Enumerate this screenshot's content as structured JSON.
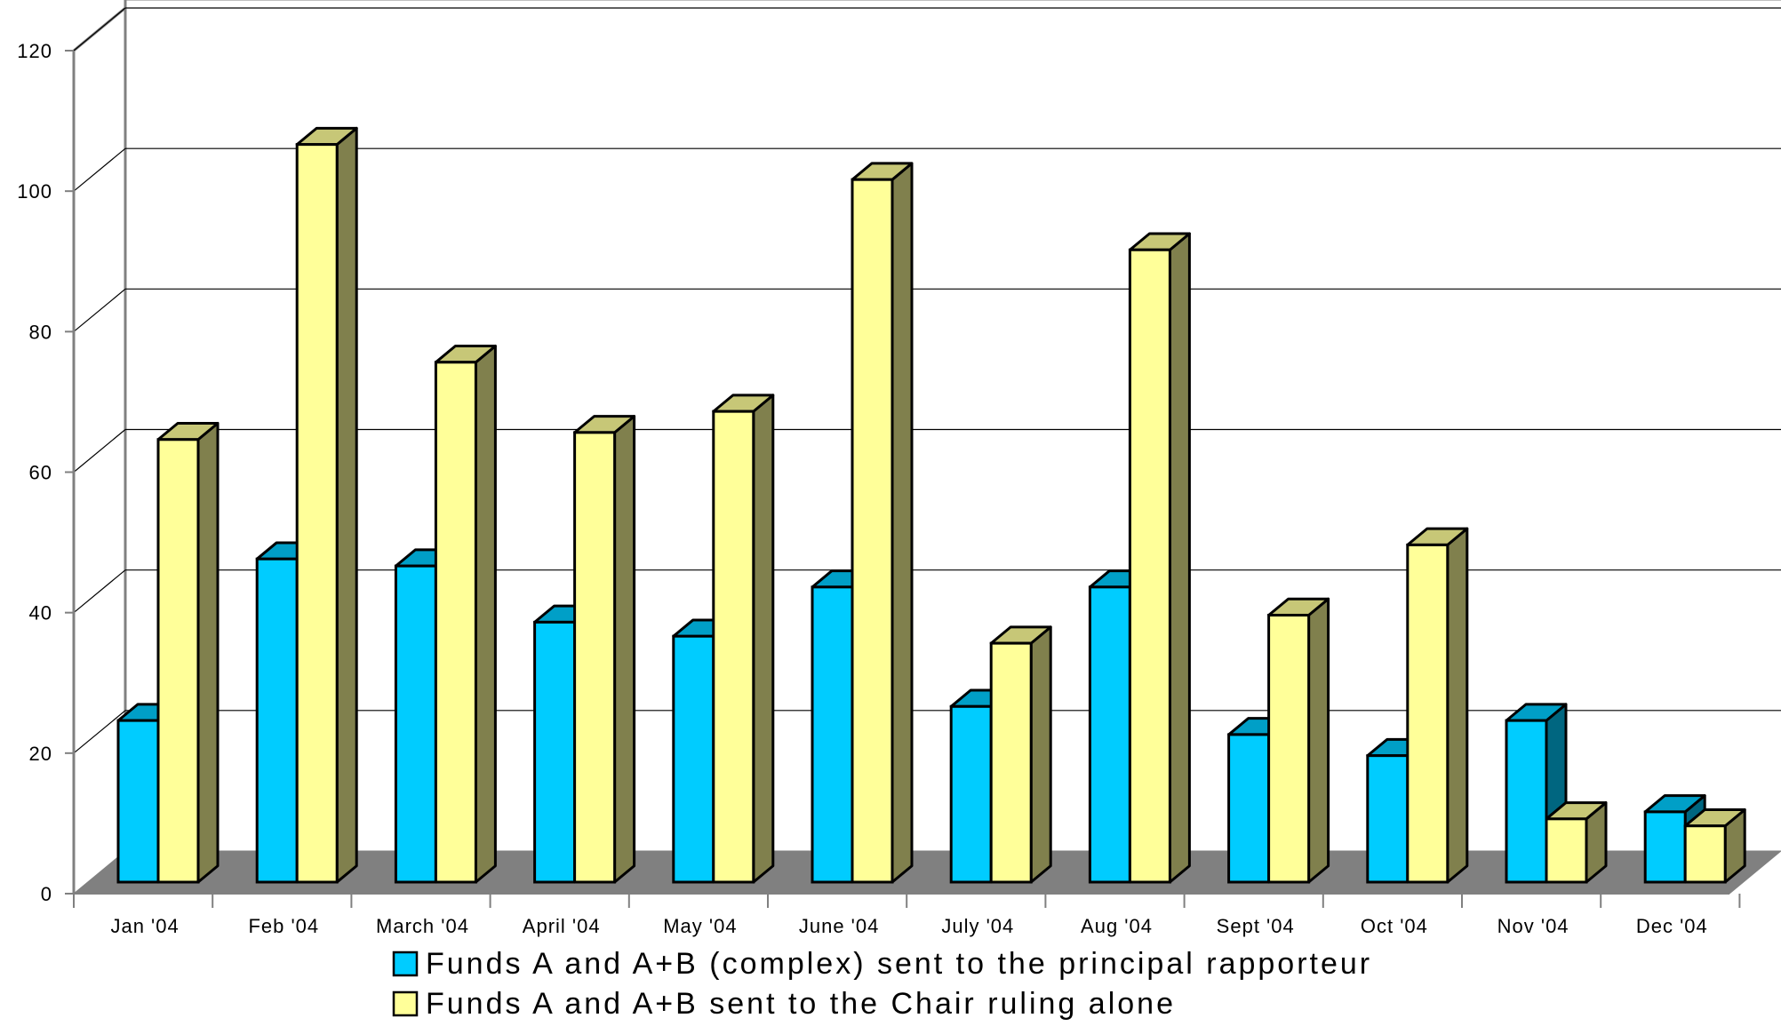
{
  "chart_data": {
    "type": "bar",
    "title": "",
    "xlabel": "",
    "ylabel": "",
    "ylim": [
      0,
      120
    ],
    "yticks": [
      0,
      20,
      40,
      60,
      80,
      100,
      120
    ],
    "grid": true,
    "legend_position": "bottom",
    "categories": [
      "Jan '04",
      "Feb '04",
      "March '04",
      "April '04",
      "May '04",
      "June '04",
      "July '04",
      "Aug '04",
      "Sept '04",
      "Oct '04",
      "Nov '04",
      "Dec '04"
    ],
    "series": [
      {
        "name": "Funds A and A+B (complex) sent to the principal rapporteur",
        "color": "#00ccff",
        "values": [
          23,
          46,
          45,
          37,
          35,
          42,
          25,
          42,
          21,
          18,
          23,
          10
        ]
      },
      {
        "name": "Funds A and A+B sent to the Chair ruling alone",
        "color": "#ffff99",
        "values": [
          63,
          105,
          74,
          64,
          67,
          100,
          34,
          90,
          38,
          48,
          9,
          8
        ]
      }
    ]
  }
}
